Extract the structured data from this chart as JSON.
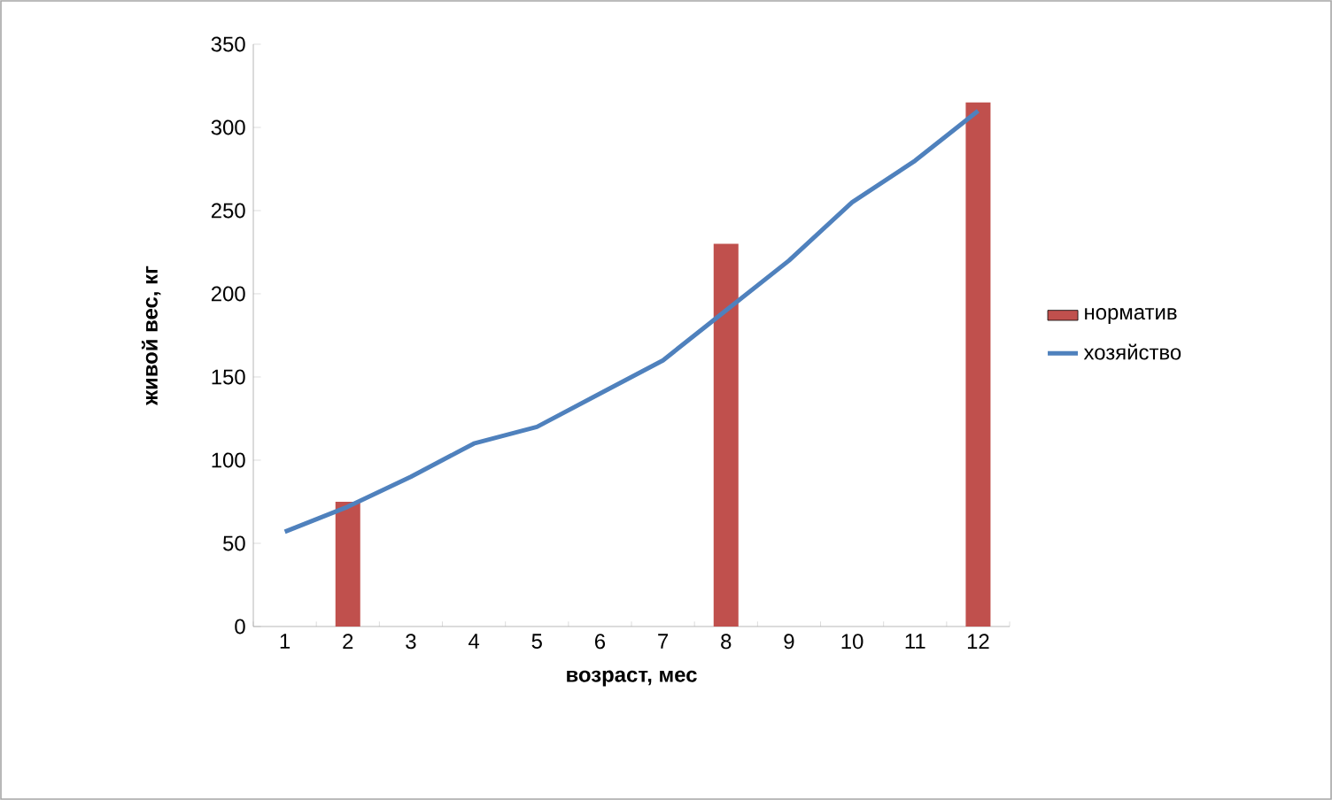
{
  "chart_data": {
    "type": "bar",
    "xlabel": "возраст, мес",
    "ylabel": "живой вес, кг",
    "categories": [
      "1",
      "2",
      "3",
      "4",
      "5",
      "6",
      "7",
      "8",
      "9",
      "10",
      "11",
      "12"
    ],
    "series": [
      {
        "name": "норматив",
        "color": "#c0504d",
        "values": [
          null,
          75,
          null,
          null,
          null,
          null,
          null,
          230,
          null,
          null,
          null,
          315
        ]
      },
      {
        "name": "хозяйство",
        "type": "line",
        "color": "#4f81bd",
        "values": [
          57,
          72,
          90,
          110,
          120,
          140,
          160,
          190,
          220,
          255,
          280,
          310
        ]
      }
    ],
    "ylim": [
      0,
      350
    ],
    "yticks": [
      0,
      50,
      100,
      150,
      200,
      250,
      300,
      350
    ],
    "legend": "right",
    "grid": false,
    "marker": "none",
    "line_style": "solid"
  }
}
